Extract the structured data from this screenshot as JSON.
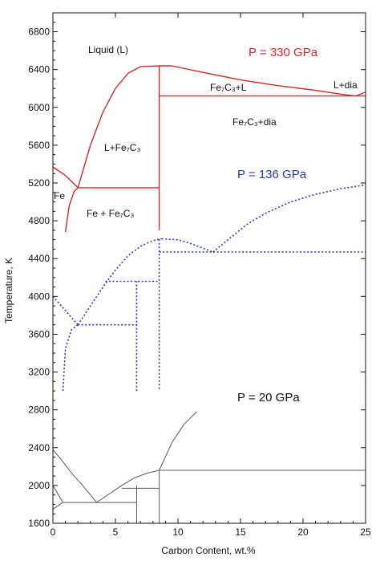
{
  "chart_data": {
    "type": "line",
    "xlabel": "Carbon Content, wt.%",
    "ylabel": "Temperature, K",
    "xlim": [
      0,
      25
    ],
    "ylim": [
      1600,
      7000
    ],
    "x_ticks": [
      0,
      5,
      10,
      15,
      20,
      25
    ],
    "y_ticks": [
      1600,
      2000,
      2400,
      2800,
      3200,
      3600,
      4000,
      4400,
      4800,
      5200,
      5600,
      6000,
      6400,
      6800
    ],
    "x_tick_labels": [
      "0",
      "5",
      "10",
      "15",
      "20",
      "25"
    ],
    "y_tick_labels": [
      "1600",
      "2000",
      "2400",
      "2800",
      "3200",
      "3600",
      "4000",
      "4400",
      "4800",
      "5200",
      "5600",
      "6000",
      "6400",
      "6800"
    ],
    "grid": false,
    "line_colors": {
      "p330": "#d42a2a",
      "p136": "#2b35c4",
      "p20": "#5a5a5a"
    },
    "series": [
      {
        "key": "p330",
        "style": "solid",
        "segments": [
          [
            [
              0,
              5370
            ],
            [
              1.0,
              5280
            ],
            [
              2.0,
              5150
            ]
          ],
          [
            [
              1.0,
              4680
            ],
            [
              1.3,
              4960
            ],
            [
              1.7,
              5110
            ],
            [
              2.0,
              5150
            ]
          ],
          [
            [
              2.0,
              5150
            ],
            [
              3.0,
              5600
            ],
            [
              4.0,
              5950
            ],
            [
              5.0,
              6200
            ],
            [
              6.0,
              6360
            ],
            [
              7.0,
              6430
            ],
            [
              8.5,
              6440
            ],
            [
              9.5,
              6440
            ]
          ],
          [
            [
              9.5,
              6440
            ],
            [
              12,
              6370
            ],
            [
              15,
              6290
            ],
            [
              18,
              6230
            ],
            [
              21,
              6180
            ],
            [
              23,
              6140
            ],
            [
              24.2,
              6120
            ],
            [
              25,
              6160
            ]
          ],
          [
            [
              8.5,
              6120
            ],
            [
              25,
              6120
            ]
          ],
          [
            [
              2.0,
              5150
            ],
            [
              8.5,
              5150
            ]
          ],
          [
            [
              8.5,
              4700
            ],
            [
              8.5,
              6440
            ]
          ]
        ]
      },
      {
        "key": "p136",
        "style": "dotted",
        "segments": [
          [
            [
              0,
              4000
            ],
            [
              1.0,
              3850
            ],
            [
              2.0,
              3700
            ]
          ],
          [
            [
              0.8,
              3000
            ],
            [
              1.0,
              3450
            ],
            [
              1.5,
              3650
            ],
            [
              2.0,
              3700
            ]
          ],
          [
            [
              2.0,
              3700
            ],
            [
              3.0,
              3900
            ],
            [
              4.0,
              4100
            ],
            [
              5.0,
              4280
            ],
            [
              6.0,
              4430
            ],
            [
              7.0,
              4530
            ],
            [
              8.0,
              4590
            ],
            [
              8.7,
              4610
            ]
          ],
          [
            [
              8.7,
              4610
            ],
            [
              10.0,
              4600
            ],
            [
              11.0,
              4560
            ],
            [
              12.0,
              4510
            ],
            [
              12.8,
              4470
            ]
          ],
          [
            [
              12.8,
              4470
            ],
            [
              14.0,
              4600
            ],
            [
              15.5,
              4760
            ],
            [
              17.0,
              4880
            ],
            [
              19.0,
              5000
            ],
            [
              21.0,
              5080
            ],
            [
              23.0,
              5140
            ],
            [
              25.0,
              5180
            ]
          ],
          [
            [
              2.0,
              3700
            ],
            [
              6.7,
              3700
            ]
          ],
          [
            [
              4.2,
              4160
            ],
            [
              8.5,
              4160
            ]
          ],
          [
            [
              8.5,
              4470
            ],
            [
              25,
              4470
            ]
          ],
          [
            [
              6.7,
              3000
            ],
            [
              6.7,
              4160
            ]
          ],
          [
            [
              8.5,
              3020
            ],
            [
              8.5,
              4610
            ]
          ]
        ]
      },
      {
        "key": "p20",
        "style": "solid",
        "segments": [
          [
            [
              0,
              2380
            ],
            [
              0.8,
              2250
            ],
            [
              1.5,
              2130
            ],
            [
              2.5,
              1980
            ],
            [
              3.5,
              1820
            ]
          ],
          [
            [
              0,
              1750
            ],
            [
              0.8,
              1820
            ],
            [
              0,
              2000
            ]
          ],
          [
            [
              0.8,
              1820
            ],
            [
              6.7,
              1820
            ]
          ],
          [
            [
              3.5,
              1820
            ],
            [
              4.5,
              1910
            ],
            [
              5.5,
              2000
            ],
            [
              6.5,
              2080
            ],
            [
              7.5,
              2130
            ],
            [
              8.5,
              2160
            ]
          ],
          [
            [
              8.5,
              2160
            ],
            [
              9.5,
              2450
            ],
            [
              10.5,
              2650
            ],
            [
              11.5,
              2780
            ]
          ],
          [
            [
              5.5,
              1970
            ],
            [
              8.5,
              1970
            ]
          ],
          [
            [
              8.5,
              2160
            ],
            [
              25,
              2160
            ]
          ],
          [
            [
              6.7,
              1600
            ],
            [
              6.7,
              2000
            ]
          ],
          [
            [
              8.5,
              1600
            ],
            [
              8.5,
              2160
            ]
          ]
        ]
      }
    ],
    "annotations": {
      "liquid": "Liquid (L)",
      "p330": "P = 330 GPa",
      "fe7c3_l": "Fe₇C₃+L",
      "l_dia": "L+dia",
      "fe7c3_dia": "Fe₇C₃+dia",
      "l_fe7c3": "L+Fe₇C₃",
      "fe": "Fe",
      "fe_fe7c3": "Fe + Fe₇C₃",
      "p136": "P = 136 GPa",
      "p20": "P = 20 GPa"
    }
  }
}
